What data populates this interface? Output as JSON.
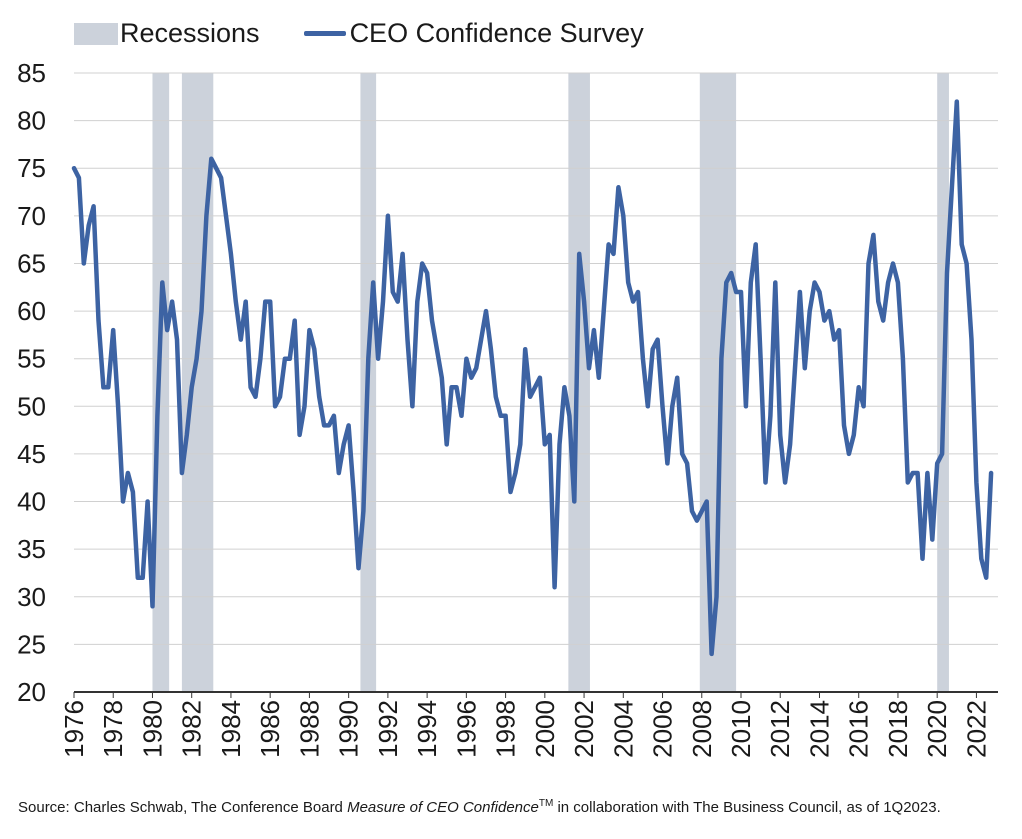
{
  "legend": {
    "recessions_label": "Recessions",
    "series_label": "CEO Confidence Survey"
  },
  "source": {
    "prefix": "Source: Charles Schwab, The Conference Board ",
    "italic": "Measure of CEO Confidence",
    "superscript": "TM",
    "suffix": " in collaboration with The Business Council, as of 1Q2023."
  },
  "colors": {
    "line": "#3d63a3",
    "recession": "#ccd2db",
    "grid": "#d0d0d0",
    "axis": "#333333"
  },
  "chart_data": {
    "type": "line",
    "x_ticks": [
      "1976",
      "1978",
      "1980",
      "1982",
      "1984",
      "1986",
      "1988",
      "1990",
      "1992",
      "1994",
      "1996",
      "1998",
      "2000",
      "2002",
      "2004",
      "2006",
      "2008",
      "2010",
      "2012",
      "2014",
      "2016",
      "2018",
      "2020",
      "2022"
    ],
    "y_ticks": [
      "20",
      "25",
      "30",
      "35",
      "40",
      "45",
      "50",
      "55",
      "60",
      "65",
      "70",
      "75",
      "80",
      "85"
    ],
    "ylim": [
      20,
      85
    ],
    "xlim": [
      1976,
      2023.1
    ],
    "grid": true,
    "legend_position": "top-left",
    "recessions": [
      [
        1980.0,
        1980.85
      ],
      [
        1981.5,
        1983.1
      ],
      [
        1990.6,
        1991.4
      ],
      [
        2001.2,
        2002.3
      ],
      [
        2007.9,
        2009.75
      ],
      [
        2020.0,
        2020.6
      ]
    ],
    "series": [
      {
        "name": "CEO Confidence Survey",
        "points": [
          [
            1976.0,
            75
          ],
          [
            1976.25,
            74
          ],
          [
            1976.5,
            65
          ],
          [
            1976.75,
            69
          ],
          [
            1977.0,
            71
          ],
          [
            1977.25,
            59
          ],
          [
            1977.5,
            52
          ],
          [
            1977.75,
            52
          ],
          [
            1978.0,
            58
          ],
          [
            1978.25,
            50
          ],
          [
            1978.5,
            40
          ],
          [
            1978.75,
            43
          ],
          [
            1979.0,
            41
          ],
          [
            1979.25,
            32
          ],
          [
            1979.5,
            32
          ],
          [
            1979.75,
            40
          ],
          [
            1980.0,
            29
          ],
          [
            1980.25,
            49
          ],
          [
            1980.5,
            63
          ],
          [
            1980.75,
            58
          ],
          [
            1981.0,
            61
          ],
          [
            1981.25,
            57
          ],
          [
            1981.5,
            43
          ],
          [
            1981.75,
            47
          ],
          [
            1982.0,
            52
          ],
          [
            1982.25,
            55
          ],
          [
            1982.5,
            60
          ],
          [
            1982.75,
            70
          ],
          [
            1983.0,
            76
          ],
          [
            1983.25,
            75
          ],
          [
            1983.5,
            74
          ],
          [
            1983.75,
            70
          ],
          [
            1984.0,
            66
          ],
          [
            1984.25,
            61
          ],
          [
            1984.5,
            57
          ],
          [
            1984.75,
            61
          ],
          [
            1985.0,
            52
          ],
          [
            1985.25,
            51
          ],
          [
            1985.5,
            55
          ],
          [
            1985.75,
            61
          ],
          [
            1986.0,
            61
          ],
          [
            1986.25,
            50
          ],
          [
            1986.5,
            51
          ],
          [
            1986.75,
            55
          ],
          [
            1987.0,
            55
          ],
          [
            1987.25,
            59
          ],
          [
            1987.5,
            47
          ],
          [
            1987.75,
            50
          ],
          [
            1988.0,
            58
          ],
          [
            1988.25,
            56
          ],
          [
            1988.5,
            51
          ],
          [
            1988.75,
            48
          ],
          [
            1989.0,
            48
          ],
          [
            1989.25,
            49
          ],
          [
            1989.5,
            43
          ],
          [
            1989.75,
            46
          ],
          [
            1990.0,
            48
          ],
          [
            1990.25,
            41
          ],
          [
            1990.5,
            33
          ],
          [
            1990.75,
            39
          ],
          [
            1991.0,
            55
          ],
          [
            1991.25,
            63
          ],
          [
            1991.5,
            55
          ],
          [
            1991.75,
            61
          ],
          [
            1992.0,
            70
          ],
          [
            1992.25,
            62
          ],
          [
            1992.5,
            61
          ],
          [
            1992.75,
            66
          ],
          [
            1993.0,
            57
          ],
          [
            1993.25,
            50
          ],
          [
            1993.5,
            61
          ],
          [
            1993.75,
            65
          ],
          [
            1994.0,
            64
          ],
          [
            1994.25,
            59
          ],
          [
            1994.5,
            56
          ],
          [
            1994.75,
            53
          ],
          [
            1995.0,
            46
          ],
          [
            1995.25,
            52
          ],
          [
            1995.5,
            52
          ],
          [
            1995.75,
            49
          ],
          [
            1996.0,
            55
          ],
          [
            1996.25,
            53
          ],
          [
            1996.5,
            54
          ],
          [
            1996.75,
            57
          ],
          [
            1997.0,
            60
          ],
          [
            1997.25,
            56
          ],
          [
            1997.5,
            51
          ],
          [
            1997.75,
            49
          ],
          [
            1998.0,
            49
          ],
          [
            1998.25,
            41
          ],
          [
            1998.5,
            43
          ],
          [
            1998.75,
            46
          ],
          [
            1999.0,
            56
          ],
          [
            1999.25,
            51
          ],
          [
            1999.5,
            52
          ],
          [
            1999.75,
            53
          ],
          [
            2000.0,
            46
          ],
          [
            2000.25,
            47
          ],
          [
            2000.5,
            31
          ],
          [
            2000.75,
            46
          ],
          [
            2001.0,
            52
          ],
          [
            2001.25,
            49
          ],
          [
            2001.5,
            40
          ],
          [
            2001.75,
            66
          ],
          [
            2002.0,
            61
          ],
          [
            2002.25,
            54
          ],
          [
            2002.5,
            58
          ],
          [
            2002.75,
            53
          ],
          [
            2003.0,
            60
          ],
          [
            2003.25,
            67
          ],
          [
            2003.5,
            66
          ],
          [
            2003.75,
            73
          ],
          [
            2004.0,
            70
          ],
          [
            2004.25,
            63
          ],
          [
            2004.5,
            61
          ],
          [
            2004.75,
            62
          ],
          [
            2005.0,
            55
          ],
          [
            2005.25,
            50
          ],
          [
            2005.5,
            56
          ],
          [
            2005.75,
            57
          ],
          [
            2006.0,
            50
          ],
          [
            2006.25,
            44
          ],
          [
            2006.5,
            50
          ],
          [
            2006.75,
            53
          ],
          [
            2007.0,
            45
          ],
          [
            2007.25,
            44
          ],
          [
            2007.5,
            39
          ],
          [
            2007.75,
            38
          ],
          [
            2008.0,
            39
          ],
          [
            2008.25,
            40
          ],
          [
            2008.5,
            24
          ],
          [
            2008.75,
            30
          ],
          [
            2009.0,
            55
          ],
          [
            2009.25,
            63
          ],
          [
            2009.5,
            64
          ],
          [
            2009.75,
            62
          ],
          [
            2010.0,
            62
          ],
          [
            2010.25,
            50
          ],
          [
            2010.5,
            63
          ],
          [
            2010.75,
            67
          ],
          [
            2011.0,
            55
          ],
          [
            2011.25,
            42
          ],
          [
            2011.5,
            49
          ],
          [
            2011.75,
            63
          ],
          [
            2012.0,
            47
          ],
          [
            2012.25,
            42
          ],
          [
            2012.5,
            46
          ],
          [
            2012.75,
            54
          ],
          [
            2013.0,
            62
          ],
          [
            2013.25,
            54
          ],
          [
            2013.5,
            60
          ],
          [
            2013.75,
            63
          ],
          [
            2014.0,
            62
          ],
          [
            2014.25,
            59
          ],
          [
            2014.5,
            60
          ],
          [
            2014.75,
            57
          ],
          [
            2015.0,
            58
          ],
          [
            2015.25,
            48
          ],
          [
            2015.5,
            45
          ],
          [
            2015.75,
            47
          ],
          [
            2016.0,
            52
          ],
          [
            2016.25,
            50
          ],
          [
            2016.5,
            65
          ],
          [
            2016.75,
            68
          ],
          [
            2017.0,
            61
          ],
          [
            2017.25,
            59
          ],
          [
            2017.5,
            63
          ],
          [
            2017.75,
            65
          ],
          [
            2018.0,
            63
          ],
          [
            2018.25,
            55
          ],
          [
            2018.5,
            42
          ],
          [
            2018.75,
            43
          ],
          [
            2019.0,
            43
          ],
          [
            2019.25,
            34
          ],
          [
            2019.5,
            43
          ],
          [
            2019.75,
            36
          ],
          [
            2020.0,
            44
          ],
          [
            2020.25,
            45
          ],
          [
            2020.5,
            64
          ],
          [
            2020.75,
            73
          ],
          [
            2021.0,
            82
          ],
          [
            2021.25,
            67
          ],
          [
            2021.5,
            65
          ],
          [
            2021.75,
            57
          ],
          [
            2022.0,
            42
          ],
          [
            2022.25,
            34
          ],
          [
            2022.5,
            32
          ],
          [
            2022.75,
            43
          ]
        ]
      }
    ]
  }
}
